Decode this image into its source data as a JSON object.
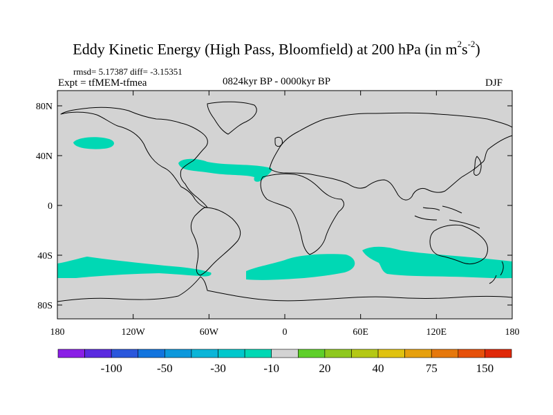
{
  "figure": {
    "title": "Eddy Kinetic Energy (High Pass, Bloomfield) at 200 hPa (in m",
    "title_unit_base": "s",
    "title_unit_exp1": "2",
    "title_unit_exp2": "-2",
    "title_close": ")",
    "stats": "rmsd= 5.17387 diff= -3.15351",
    "experiment": "Expt = tfMEM-tfmea",
    "period": "0824kyr BP - 0000kyr BP",
    "season": "DJF"
  },
  "map": {
    "land_sea_fill": "#d3d3d3",
    "coastline_color": "#000000",
    "lon_ticks": [
      "180",
      "120W",
      "60W",
      "0",
      "60E",
      "120E",
      "180"
    ],
    "lat_ticks": [
      "80N",
      "40N",
      "0",
      "40S",
      "80S"
    ],
    "anomaly_regions": [
      {
        "name": "North Pacific",
        "level": "-30 to -10",
        "color": "#00d8b4"
      },
      {
        "name": "North Atlantic",
        "level": "-30 to -10",
        "color": "#00d8b4"
      },
      {
        "name": "South Pacific",
        "level": "-30 to -10",
        "color": "#00d8b4"
      },
      {
        "name": "South Atlantic",
        "level": "-30 to -10",
        "color": "#00d8b4"
      },
      {
        "name": "Southern Indian Ocean",
        "level": "-30 to -10",
        "color": "#00d8b4"
      }
    ]
  },
  "colorbar": {
    "labels": [
      "-100",
      "-50",
      "-30",
      "-10",
      "20",
      "40",
      "75",
      "150"
    ],
    "colors": [
      "#8a1ee6",
      "#5a2ae0",
      "#2a56dc",
      "#1274de",
      "#0d98dc",
      "#0ab5d8",
      "#00c8cc",
      "#00d8b4",
      "#d3d3d3",
      "#5ecf2a",
      "#8ec81e",
      "#b4c814",
      "#e0c210",
      "#e6a00e",
      "#e6780c",
      "#e6500a",
      "#e02808"
    ]
  }
}
